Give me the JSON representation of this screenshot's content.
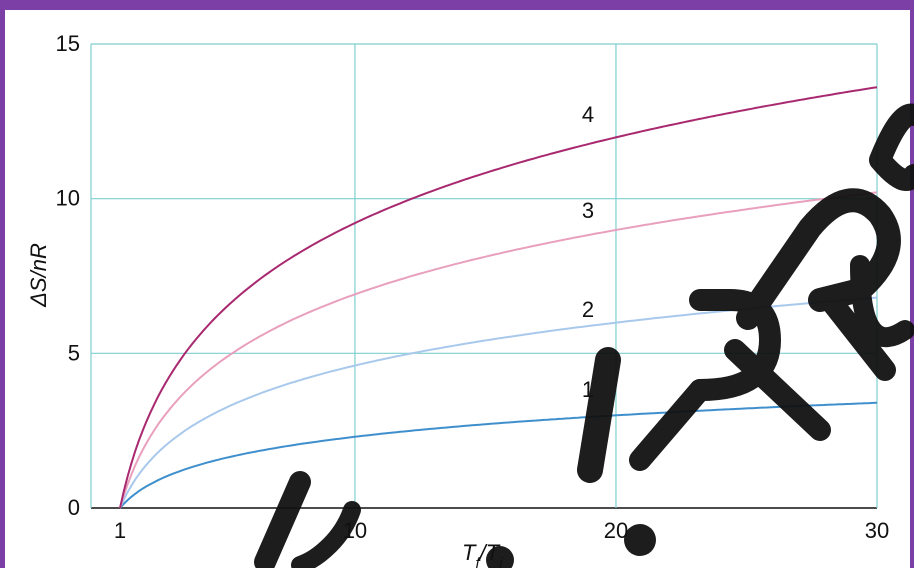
{
  "chart_data": {
    "type": "line",
    "xlabel": "Tf/Ti",
    "xlabel_main": "T",
    "xlabel_sub_f": "f",
    "xlabel_slash": "/",
    "xlabel_sub_i": "i",
    "ylabel": "ΔS/nR",
    "xlim": [
      1,
      30
    ],
    "ylim": [
      0,
      15
    ],
    "x_ticks": [
      1,
      10,
      20,
      30
    ],
    "y_ticks": [
      0,
      5,
      10,
      15
    ],
    "grid": true,
    "series": [
      {
        "name": "1",
        "coefficient": 1.0,
        "color": "#3f8fcd",
        "x": [
          1,
          2,
          5,
          10,
          15,
          20,
          25,
          30
        ],
        "y": [
          0,
          0.69,
          1.61,
          2.3,
          2.71,
          3.0,
          3.22,
          3.4
        ]
      },
      {
        "name": "2",
        "coefficient": 2.0,
        "color": "#a9c9ec",
        "x": [
          1,
          2,
          5,
          10,
          15,
          20,
          25,
          30
        ],
        "y": [
          0,
          1.39,
          3.22,
          4.61,
          5.42,
          5.99,
          6.44,
          6.8
        ]
      },
      {
        "name": "3",
        "coefficient": 3.0,
        "color": "#e8a0bd",
        "x": [
          1,
          2,
          5,
          10,
          15,
          20,
          25,
          30
        ],
        "y": [
          0,
          2.08,
          4.83,
          6.91,
          8.12,
          8.99,
          9.66,
          10.2
        ]
      },
      {
        "name": "4",
        "coefficient": 4.0,
        "color": "#a8296f",
        "x": [
          1,
          2,
          5,
          10,
          15,
          20,
          25,
          30
        ],
        "y": [
          0,
          2.77,
          6.44,
          9.21,
          10.83,
          11.98,
          12.88,
          13.6
        ]
      }
    ],
    "watermark": "Dr. I. R. Rush",
    "frame_color": "#7b3fa5",
    "grid_color": "#7fcfcf"
  }
}
